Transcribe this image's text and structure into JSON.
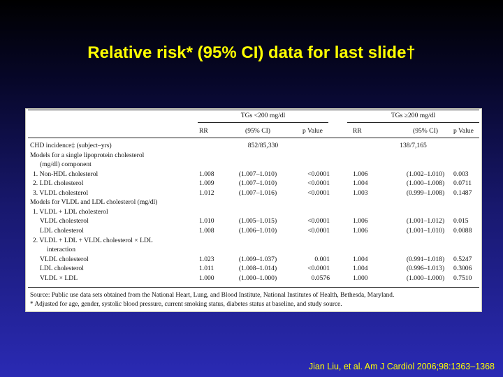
{
  "slide": {
    "title": "Relative risk* (95% CI) data for last slide†",
    "citation": "Jian Liu, et al. Am J Cardiol 2006;98:1363–1368"
  },
  "table": {
    "group_headers": [
      "TGs <200 mg/dl",
      "TGs ≥200 mg/dl"
    ],
    "column_headers": [
      "RR",
      "(95% CI)",
      "p Value",
      "RR",
      "(95% CI)",
      "p Value"
    ],
    "rows": [
      {
        "label": "CHD incidence‡ (subject–yrs)",
        "indent": 0,
        "span": [
          "852/85,330",
          "138/7,165"
        ]
      },
      {
        "label": "Models for a single lipoprotein cholesterol",
        "indent": 0
      },
      {
        "label": "(mg/dl) component",
        "indent": 2
      },
      {
        "label": "1. Non-HDL cholesterol",
        "indent": 1,
        "v": [
          "1.008",
          "(1.007–1.010)",
          "<0.0001",
          "1.006",
          "(1.002–1.010)",
          "0.003"
        ]
      },
      {
        "label": "2. LDL cholesterol",
        "indent": 1,
        "v": [
          "1.009",
          "(1.007–1.010)",
          "<0.0001",
          "1.004",
          "(1.000–1.008)",
          "0.0711"
        ]
      },
      {
        "label": "3. VLDL cholesterol",
        "indent": 1,
        "v": [
          "1.012",
          "(1.007–1.016)",
          "<0.0001",
          "1.003",
          "(0.999–1.008)",
          "0.1487"
        ]
      },
      {
        "label": "Models for VLDL and LDL cholesterol (mg/dl)",
        "indent": 0
      },
      {
        "label": "1. VLDL + LDL cholesterol",
        "indent": 1
      },
      {
        "label": "VLDL cholesterol",
        "indent": 2,
        "v": [
          "1.010",
          "(1.005–1.015)",
          "<0.0001",
          "1.006",
          "(1.001–1.012)",
          "0.015"
        ]
      },
      {
        "label": "LDL cholesterol",
        "indent": 2,
        "v": [
          "1.008",
          "(1.006–1.010)",
          "<0.0001",
          "1.006",
          "(1.001–1.010)",
          "0.0088"
        ]
      },
      {
        "label": "2. VLDL + LDL + VLDL cholesterol × LDL",
        "indent": 1
      },
      {
        "label": "interaction",
        "indent": 3
      },
      {
        "label": "VLDL cholesterol",
        "indent": 2,
        "v": [
          "1.023",
          "(1.009–1.037)",
          "0.001",
          "1.004",
          "(0.991–1.018)",
          "0.5247"
        ]
      },
      {
        "label": "LDL cholesterol",
        "indent": 2,
        "v": [
          "1.011",
          "(1.008–1.014)",
          "<0.0001",
          "1.004",
          "(0.996–1.013)",
          "0.3006"
        ]
      },
      {
        "label": "VLDL × LDL",
        "indent": 2,
        "v": [
          "1.000",
          "(1.000–1.000)",
          "0.0576",
          "1.000",
          "(1.000–1.000)",
          "0.7510"
        ]
      }
    ],
    "footnotes": [
      "Source: Public use data sets obtained from the National Heart, Lung, and Blood Institute, National Institutes of Health, Bethesda, Maryland.",
      "* Adjusted for age, gender, systolic blood pressure, current smoking status, diabetes status at baseline, and study source."
    ]
  }
}
